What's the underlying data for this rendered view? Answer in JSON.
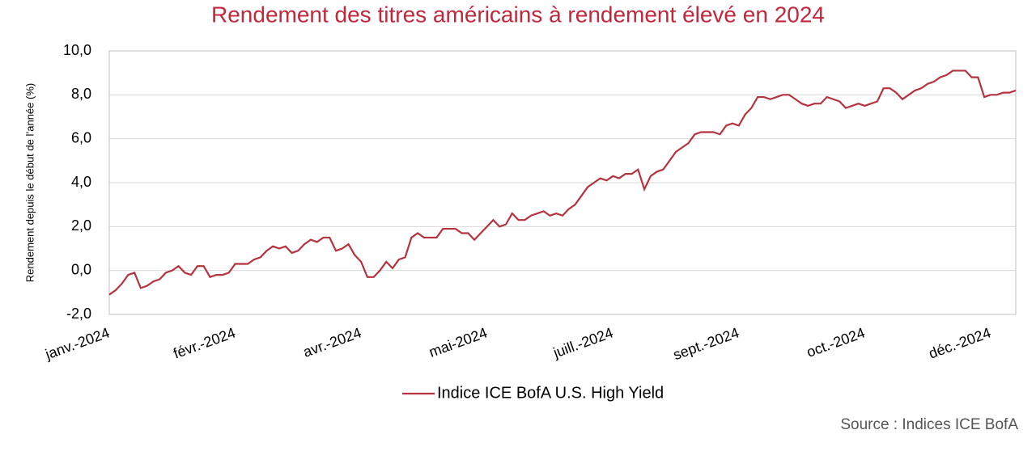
{
  "chart_data": {
    "type": "line",
    "title": "Rendement des titres américains à rendement élevé en 2024",
    "y_label": "Rendement depuis le début de l’année (%)",
    "source": "Source : Indices ICE BofA",
    "categories": [
      "janv.-2024",
      null,
      null,
      null,
      null,
      null,
      null,
      null,
      null,
      null,
      null,
      null,
      null,
      null,
      null,
      null,
      null,
      null,
      null,
      null,
      "févr.-2024",
      null,
      null,
      null,
      null,
      null,
      null,
      null,
      null,
      null,
      null,
      null,
      null,
      null,
      null,
      null,
      null,
      null,
      null,
      null,
      "avr.-2024",
      null,
      null,
      null,
      null,
      null,
      null,
      null,
      null,
      null,
      null,
      null,
      null,
      null,
      null,
      null,
      null,
      null,
      null,
      null,
      "mai-2024",
      null,
      null,
      null,
      null,
      null,
      null,
      null,
      null,
      null,
      null,
      null,
      null,
      null,
      null,
      null,
      null,
      null,
      null,
      null,
      "juill.-2024",
      null,
      null,
      null,
      null,
      null,
      null,
      null,
      null,
      null,
      null,
      null,
      null,
      null,
      null,
      null,
      null,
      null,
      null,
      null,
      "sept.-2024",
      null,
      null,
      null,
      null,
      null,
      null,
      null,
      null,
      null,
      null,
      null,
      null,
      null,
      null,
      null,
      null,
      null,
      null,
      null,
      "oct.-2024",
      null,
      null,
      null,
      null,
      null,
      null,
      null,
      null,
      null,
      null,
      null,
      null,
      null,
      null,
      null,
      null,
      null,
      null,
      null,
      "déc.-2024",
      null,
      null,
      null,
      null
    ],
    "series": [
      {
        "name": "Indice ICE BofA U.S. High Yield",
        "color": "#b5333f",
        "values": [
          -1.1,
          -0.9,
          -0.6,
          -0.2,
          -0.1,
          -0.8,
          -0.7,
          -0.5,
          -0.4,
          -0.1,
          0.0,
          0.2,
          -0.1,
          -0.2,
          0.2,
          0.2,
          -0.3,
          -0.2,
          -0.2,
          -0.1,
          0.3,
          0.3,
          0.3,
          0.5,
          0.6,
          0.9,
          1.1,
          1.0,
          1.1,
          0.8,
          0.9,
          1.2,
          1.4,
          1.3,
          1.5,
          1.5,
          0.9,
          1.0,
          1.2,
          0.7,
          0.4,
          -0.3,
          -0.3,
          0.0,
          0.4,
          0.1,
          0.5,
          0.6,
          1.5,
          1.7,
          1.5,
          1.5,
          1.5,
          1.9,
          1.9,
          1.9,
          1.7,
          1.7,
          1.4,
          1.7,
          2.0,
          2.3,
          2.0,
          2.1,
          2.6,
          2.3,
          2.3,
          2.5,
          2.6,
          2.7,
          2.5,
          2.6,
          2.5,
          2.8,
          3.0,
          3.4,
          3.8,
          4.0,
          4.2,
          4.1,
          4.3,
          4.2,
          4.4,
          4.4,
          4.6,
          3.7,
          4.3,
          4.5,
          4.6,
          5.0,
          5.4,
          5.6,
          5.8,
          6.2,
          6.3,
          6.3,
          6.3,
          6.2,
          6.6,
          6.7,
          6.6,
          7.1,
          7.4,
          7.9,
          7.9,
          7.8,
          7.9,
          8.0,
          8.0,
          7.8,
          7.6,
          7.5,
          7.6,
          7.6,
          7.9,
          7.8,
          7.7,
          7.4,
          7.5,
          7.6,
          7.5,
          7.6,
          7.7,
          8.3,
          8.3,
          8.1,
          7.8,
          8.0,
          8.2,
          8.3,
          8.5,
          8.6,
          8.8,
          8.9,
          9.1,
          9.1,
          9.1,
          8.8,
          8.8,
          7.9,
          8.0,
          8.0,
          8.1,
          8.1,
          8.2
        ]
      }
    ],
    "ylim": [
      -2,
      10
    ],
    "yticks": [
      {
        "value": -2,
        "label": "-2,0"
      },
      {
        "value": 0,
        "label": "0,0"
      },
      {
        "value": 2,
        "label": "2,0"
      },
      {
        "value": 4,
        "label": "4,0"
      },
      {
        "value": 6,
        "label": "6,0"
      },
      {
        "value": 8,
        "label": "8,0"
      },
      {
        "value": 10,
        "label": "10,0"
      }
    ],
    "grid": true,
    "legend": "bottom"
  }
}
